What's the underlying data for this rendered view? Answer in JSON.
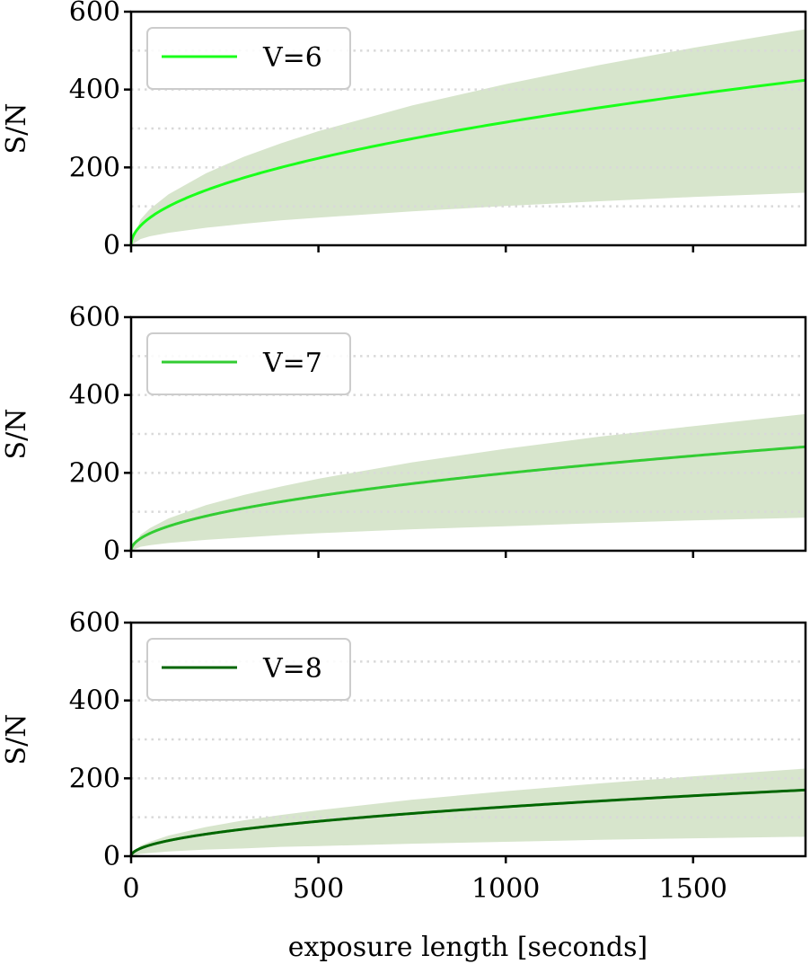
{
  "chart_data": [
    {
      "type": "line",
      "series": [
        {
          "name": "V=6",
          "color": "#1aff1a",
          "formula": "y = 10 * sqrt(x)",
          "x": [
            0,
            25,
            50,
            100,
            200,
            300,
            400,
            500,
            750,
            1000,
            1250,
            1500,
            1800
          ],
          "y": [
            0,
            50,
            71,
            100,
            141,
            173,
            200,
            224,
            274,
            316,
            354,
            387,
            424
          ]
        }
      ],
      "band": {
        "color": "#d7e5cc",
        "lower": [
          0,
          16,
          23,
          32,
          45,
          55,
          64,
          71,
          87,
          101,
          113,
          124,
          135
        ],
        "upper": [
          0,
          66,
          93,
          131,
          185,
          227,
          262,
          293,
          359,
          414,
          463,
          507,
          555
        ]
      },
      "xlim": [
        0,
        1800
      ],
      "ylim": [
        0,
        600
      ],
      "yticks": [
        "0",
        "200",
        "400",
        "600"
      ],
      "ylabel": "S/N",
      "xlabel": "",
      "grid_y": [
        100,
        200,
        300,
        400,
        500
      ],
      "legend": "upper-left"
    },
    {
      "type": "line",
      "series": [
        {
          "name": "V=7",
          "color": "#33cc33",
          "formula": "y = 6.3 * sqrt(x)",
          "x": [
            0,
            25,
            50,
            100,
            200,
            300,
            400,
            500,
            750,
            1000,
            1250,
            1500,
            1800
          ],
          "y": [
            0,
            32,
            45,
            63,
            89,
            109,
            126,
            141,
            173,
            199,
            223,
            244,
            267
          ]
        }
      ],
      "band": {
        "color": "#d7e5cc",
        "lower": [
          0,
          10,
          14,
          20,
          28,
          34,
          40,
          45,
          55,
          63,
          71,
          78,
          85
        ],
        "upper": [
          0,
          41,
          58,
          83,
          117,
          143,
          165,
          185,
          227,
          262,
          293,
          320,
          351
        ]
      },
      "xlim": [
        0,
        1800
      ],
      "ylim": [
        0,
        600
      ],
      "yticks": [
        "0",
        "200",
        "400",
        "600"
      ],
      "ylabel": "S/N",
      "xlabel": "",
      "grid_y": [
        100,
        200,
        300,
        400,
        500
      ],
      "legend": "upper-left"
    },
    {
      "type": "line",
      "series": [
        {
          "name": "V=8",
          "color": "#006600",
          "formula": "y = 4 * sqrt(x)",
          "x": [
            0,
            25,
            50,
            100,
            200,
            300,
            400,
            500,
            750,
            1000,
            1250,
            1500,
            1800
          ],
          "y": [
            0,
            20,
            28,
            40,
            57,
            69,
            80,
            89,
            110,
            126,
            141,
            155,
            170
          ]
        }
      ],
      "band": {
        "color": "#d7e5cc",
        "lower": [
          0,
          6,
          8,
          12,
          17,
          20,
          24,
          26,
          32,
          37,
          42,
          46,
          50
        ],
        "upper": [
          0,
          27,
          37,
          53,
          75,
          92,
          106,
          118,
          145,
          167,
          187,
          205,
          225
        ]
      },
      "xlim": [
        0,
        1800
      ],
      "ylim": [
        0,
        600
      ],
      "yticks": [
        "0",
        "200",
        "400",
        "600"
      ],
      "xticks": [
        "0",
        "500",
        "1000",
        "1500"
      ],
      "ylabel": "S/N",
      "xlabel": "exposure length [seconds]",
      "grid_y": [
        100,
        200,
        300,
        400,
        500
      ],
      "legend": "upper-left"
    }
  ]
}
